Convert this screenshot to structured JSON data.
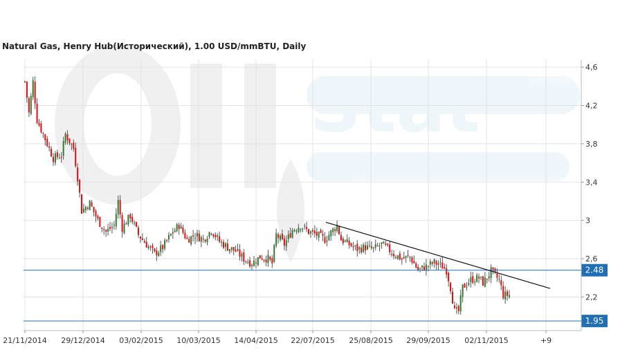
{
  "chart_data": {
    "type": "candlestick",
    "title": "Natural Gas, Henry Hub(Исторический), 1.00 USD/mmBTU, Daily",
    "y_ticks": [
      "4,6",
      "4,2",
      "3,8",
      "3,4",
      "3",
      "2,6",
      "2,2"
    ],
    "y_tick_values": [
      4.6,
      4.2,
      3.8,
      3.4,
      3.0,
      2.6,
      2.2
    ],
    "x_ticks": [
      "21/11/2014",
      "29/12/2014",
      "03/02/2015",
      "10/03/2015",
      "14/04/2015",
      "22/07/2015",
      "25/08/2015",
      "29/09/2015",
      "02/11/2015",
      "+9"
    ],
    "ylim": [
      1.85,
      4.68
    ],
    "grid": true,
    "up_color": "#2e7d32",
    "down_color": "#e01010",
    "watermark": "OilStat",
    "horizontal_levels": [
      {
        "label": "2.48",
        "value": 2.48,
        "color": "#1f6fb2"
      },
      {
        "label": "1.95",
        "value": 1.95,
        "color": "#1f6fb2"
      }
    ],
    "trendline": {
      "from_value": 2.98,
      "to_value": 2.29
    },
    "price_path": [
      [
        0,
        4.45
      ],
      [
        2,
        4.12
      ],
      [
        4,
        4.45
      ],
      [
        6,
        4.05
      ],
      [
        10,
        3.85
      ],
      [
        14,
        3.65
      ],
      [
        18,
        3.68
      ],
      [
        20,
        3.9
      ],
      [
        24,
        3.75
      ],
      [
        26,
        3.45
      ],
      [
        28,
        3.1
      ],
      [
        32,
        3.18
      ],
      [
        36,
        3.0
      ],
      [
        40,
        2.88
      ],
      [
        44,
        2.95
      ],
      [
        46,
        3.2
      ],
      [
        48,
        2.92
      ],
      [
        52,
        3.05
      ],
      [
        56,
        2.85
      ],
      [
        60,
        2.75
      ],
      [
        64,
        2.65
      ],
      [
        68,
        2.72
      ],
      [
        72,
        2.85
      ],
      [
        76,
        2.95
      ],
      [
        80,
        2.8
      ],
      [
        84,
        2.85
      ],
      [
        88,
        2.8
      ],
      [
        92,
        2.9
      ],
      [
        96,
        2.78
      ],
      [
        100,
        2.72
      ],
      [
        104,
        2.68
      ],
      [
        108,
        2.6
      ],
      [
        112,
        2.55
      ],
      [
        116,
        2.62
      ],
      [
        120,
        2.6
      ],
      [
        122,
        2.55
      ],
      [
        124,
        2.85
      ],
      [
        128,
        2.75
      ],
      [
        132,
        2.9
      ],
      [
        136,
        2.95
      ],
      [
        140,
        2.88
      ],
      [
        144,
        2.85
      ],
      [
        148,
        2.8
      ],
      [
        152,
        2.9
      ],
      [
        154,
        2.95
      ],
      [
        156,
        2.8
      ],
      [
        160,
        2.75
      ],
      [
        164,
        2.7
      ],
      [
        168,
        2.72
      ],
      [
        172,
        2.7
      ],
      [
        176,
        2.75
      ],
      [
        178,
        2.72
      ],
      [
        182,
        2.65
      ],
      [
        186,
        2.6
      ],
      [
        190,
        2.62
      ],
      [
        194,
        2.48
      ],
      [
        198,
        2.52
      ],
      [
        202,
        2.56
      ],
      [
        206,
        2.52
      ],
      [
        208,
        2.48
      ],
      [
        210,
        2.3
      ],
      [
        212,
        2.05
      ],
      [
        214,
        2.05
      ],
      [
        216,
        2.3
      ],
      [
        220,
        2.38
      ],
      [
        224,
        2.4
      ],
      [
        226,
        2.35
      ],
      [
        228,
        2.4
      ],
      [
        230,
        2.47
      ],
      [
        232,
        2.42
      ],
      [
        234,
        2.38
      ],
      [
        236,
        2.22
      ]
    ]
  }
}
